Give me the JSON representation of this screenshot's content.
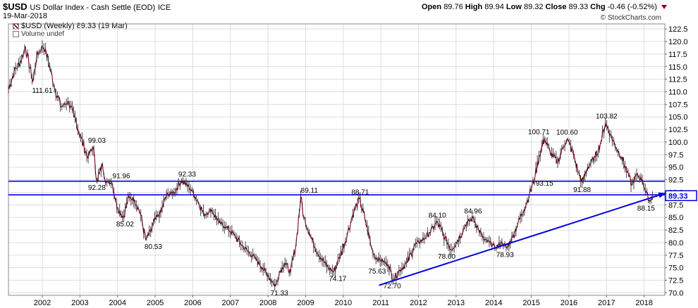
{
  "header": {
    "symbol": "$USD",
    "description": "US Dollar Index - Cash Settle (EOD)",
    "exchange": "ICE",
    "date": "19-Mar-2018",
    "open_label": "Open",
    "open": "89.76",
    "high_label": "High",
    "high": "89.94",
    "low_label": "Low",
    "low": "89.32",
    "close_label": "Close",
    "close": "89.33",
    "chg_label": "Chg",
    "chg": "-0.46 (-0.52%)",
    "brand": "© StockCharts.com"
  },
  "legend": {
    "price_series": "$USD (Weekly) 89.33 (19 Mar)",
    "volume": "Volume undef"
  },
  "colors": {
    "price": "#880022",
    "lines": "#0000e0",
    "grid": "#dddddd",
    "last_box": "#0000e0"
  },
  "chart_data": {
    "type": "line",
    "title": "$USD US Dollar Index - Cash Settle (EOD) ICE",
    "xlabel": "",
    "ylabel": "",
    "x_range": [
      2001.1,
      2018.55
    ],
    "ylim": [
      69.5,
      123.5
    ],
    "x_ticks": [
      "2002",
      "2003",
      "2004",
      "2005",
      "2006",
      "2007",
      "2008",
      "2009",
      "2010",
      "2011",
      "2012",
      "2013",
      "2014",
      "2015",
      "2016",
      "2017",
      "2018"
    ],
    "y_ticks": [
      70.0,
      72.5,
      75.0,
      77.5,
      80.0,
      82.5,
      85.0,
      87.5,
      90.0,
      92.5,
      95.0,
      97.5,
      100.0,
      102.5,
      105.0,
      107.5,
      110.0,
      112.5,
      115.0,
      117.5,
      120.0,
      122.5
    ],
    "y_tick_labels": [
      "70.0",
      "72.5",
      "75.0",
      "77.5",
      "80.0",
      "82.5",
      "85.0",
      "87.5",
      "90.0",
      "92.5",
      "95.0",
      "97.5",
      "100.0",
      "102.5",
      "105.0",
      "107.5",
      "110.0",
      "112.5",
      "115.0",
      "117.5",
      "120.0",
      "122.5"
    ],
    "grid": true,
    "series": [
      {
        "name": "$USD (Weekly)",
        "x": [
          2001.1,
          2001.25,
          2001.45,
          2001.55,
          2001.75,
          2001.85,
          2002.0,
          2002.1,
          2002.3,
          2002.5,
          2002.7,
          2002.85,
          2003.0,
          2003.2,
          2003.35,
          2003.45,
          2003.6,
          2003.7,
          2003.85,
          2004.0,
          2004.15,
          2004.3,
          2004.45,
          2004.6,
          2004.75,
          2004.9,
          2004.95,
          2005.15,
          2005.3,
          2005.5,
          2005.7,
          2005.9,
          2006.0,
          2006.15,
          2006.3,
          2006.5,
          2006.7,
          2006.9,
          2007.1,
          2007.3,
          2007.5,
          2007.7,
          2007.85,
          2008.0,
          2008.2,
          2008.3,
          2008.45,
          2008.6,
          2008.75,
          2008.87,
          2008.95,
          2009.1,
          2009.25,
          2009.4,
          2009.6,
          2009.75,
          2009.9,
          2010.1,
          2010.25,
          2010.43,
          2010.6,
          2010.75,
          2010.85,
          2011.0,
          2011.2,
          2011.33,
          2011.5,
          2011.7,
          2011.9,
          2012.1,
          2012.3,
          2012.5,
          2012.7,
          2012.87,
          2013.05,
          2013.25,
          2013.45,
          2013.6,
          2013.75,
          2013.9,
          2014.05,
          2014.2,
          2014.35,
          2014.5,
          2014.65,
          2014.8,
          2014.95,
          2015.1,
          2015.2,
          2015.35,
          2015.5,
          2015.7,
          2015.85,
          2015.95,
          2016.1,
          2016.25,
          2016.35,
          2016.5,
          2016.7,
          2016.85,
          2016.97,
          2017.1,
          2017.25,
          2017.4,
          2017.55,
          2017.67,
          2017.8,
          2017.95,
          2018.05,
          2018.15,
          2018.22
        ],
        "values": [
          110.5,
          114.0,
          116.5,
          119.0,
          112.0,
          117.0,
          119.0,
          118.0,
          111.6,
          107.0,
          108.0,
          105.0,
          101.5,
          97.0,
          99.0,
          92.3,
          95.5,
          92.0,
          91.96,
          87.0,
          85.02,
          89.0,
          88.5,
          86.0,
          80.53,
          82.5,
          84.0,
          86.0,
          89.5,
          90.0,
          92.33,
          91.0,
          90.0,
          88.0,
          85.5,
          86.5,
          84.0,
          83.0,
          81.5,
          79.5,
          78.0,
          76.5,
          75.0,
          73.5,
          71.33,
          74.0,
          76.0,
          74.0,
          80.0,
          89.11,
          85.0,
          82.0,
          79.0,
          77.0,
          75.0,
          74.17,
          77.0,
          81.5,
          85.5,
          88.71,
          84.0,
          79.0,
          77.0,
          76.5,
          75.63,
          72.7,
          74.5,
          76.0,
          79.5,
          80.5,
          82.0,
          84.1,
          81.0,
          78.6,
          80.5,
          83.5,
          84.96,
          82.5,
          80.5,
          80.0,
          79.0,
          80.0,
          78.93,
          81.0,
          84.0,
          86.5,
          89.5,
          93.15,
          97.0,
          100.71,
          98.0,
          96.0,
          99.0,
          100.6,
          98.0,
          94.0,
          91.88,
          95.0,
          97.0,
          100.0,
          103.82,
          101.5,
          99.0,
          97.0,
          94.0,
          91.5,
          93.5,
          92.5,
          90.0,
          88.15,
          89.33
        ],
        "color": "#880022"
      }
    ],
    "labels": [
      {
        "text": "111.61",
        "x": 2002.0,
        "y": 111.61,
        "pos": "below"
      },
      {
        "text": "99.03",
        "x": 2003.45,
        "y": 99.03,
        "pos": "above"
      },
      {
        "text": "92.28",
        "x": 2003.45,
        "y": 92.28,
        "pos": "below"
      },
      {
        "text": "91.96",
        "x": 2004.1,
        "y": 91.96,
        "pos": "above"
      },
      {
        "text": "85.02",
        "x": 2004.2,
        "y": 85.02,
        "pos": "below"
      },
      {
        "text": "80.53",
        "x": 2004.95,
        "y": 80.53,
        "pos": "below"
      },
      {
        "text": "92.33",
        "x": 2005.85,
        "y": 92.33,
        "pos": "above"
      },
      {
        "text": "71.33",
        "x": 2008.3,
        "y": 71.33,
        "pos": "below"
      },
      {
        "text": "89.11",
        "x": 2009.1,
        "y": 89.11,
        "pos": "above"
      },
      {
        "text": "74.17",
        "x": 2009.85,
        "y": 74.17,
        "pos": "below"
      },
      {
        "text": "88.71",
        "x": 2010.45,
        "y": 88.71,
        "pos": "above"
      },
      {
        "text": "75.63",
        "x": 2010.9,
        "y": 75.63,
        "pos": "below"
      },
      {
        "text": "72.70",
        "x": 2011.3,
        "y": 72.7,
        "pos": "below"
      },
      {
        "text": "84.10",
        "x": 2012.5,
        "y": 84.1,
        "pos": "above"
      },
      {
        "text": "78.60",
        "x": 2012.75,
        "y": 78.6,
        "pos": "below"
      },
      {
        "text": "84.96",
        "x": 2013.45,
        "y": 84.96,
        "pos": "above"
      },
      {
        "text": "78.93",
        "x": 2014.3,
        "y": 78.93,
        "pos": "below"
      },
      {
        "text": "93.15",
        "x": 2015.35,
        "y": 93.15,
        "pos": "below"
      },
      {
        "text": "100.71",
        "x": 2015.2,
        "y": 100.71,
        "pos": "above"
      },
      {
        "text": "100.60",
        "x": 2015.95,
        "y": 100.6,
        "pos": "above"
      },
      {
        "text": "91.88",
        "x": 2016.35,
        "y": 91.88,
        "pos": "below"
      },
      {
        "text": "103.82",
        "x": 2017.0,
        "y": 103.82,
        "pos": "above"
      },
      {
        "text": "88.15",
        "x": 2018.05,
        "y": 88.15,
        "pos": "below"
      }
    ],
    "horizontal_lines": [
      92.2,
      89.5
    ],
    "trendline": {
      "start": {
        "x": 2010.95,
        "y": 71.5
      },
      "end": {
        "x": 2018.55,
        "y": 89.8
      }
    },
    "last_value": "89.33"
  }
}
